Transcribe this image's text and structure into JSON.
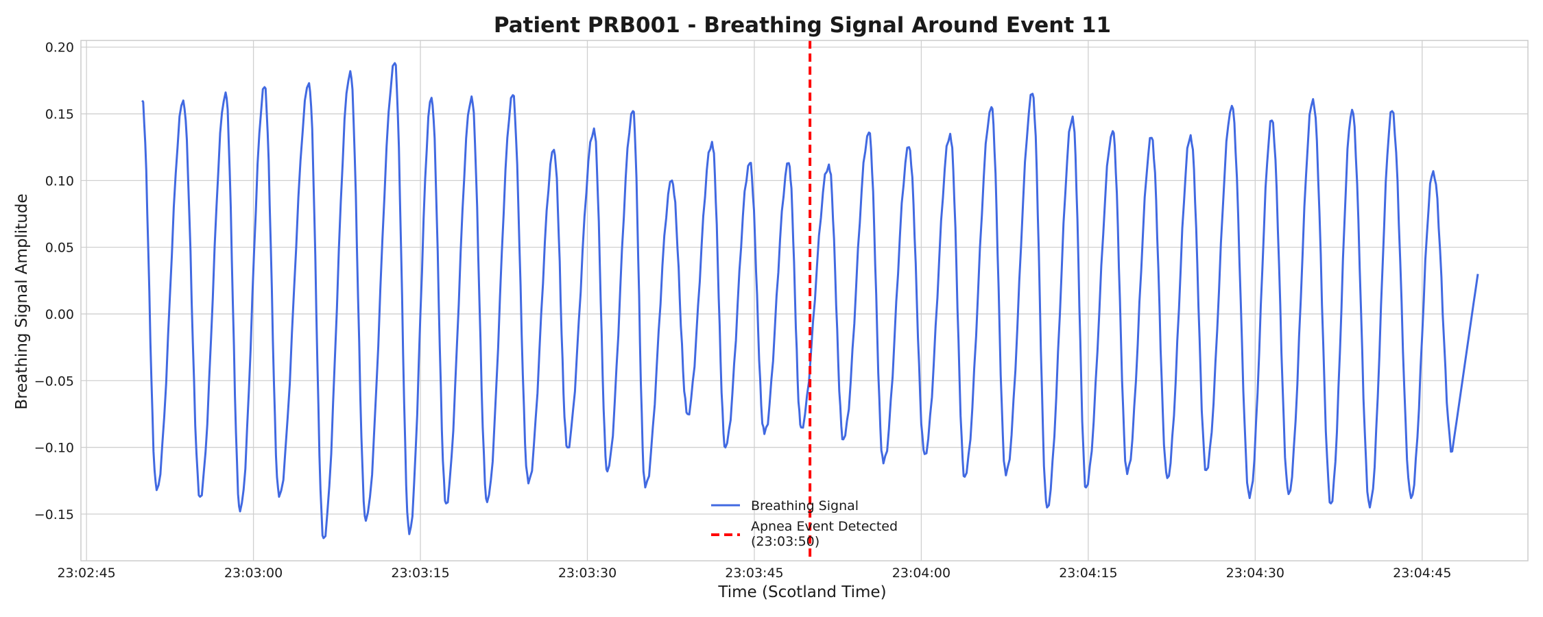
{
  "chart_data": {
    "type": "line",
    "title": "Patient PRB001 - Breathing Signal Around Event 11",
    "xlabel": "Time (Scotland Time)",
    "ylabel": "Breathing Signal Amplitude",
    "x_ticks": [
      "23:02:45",
      "23:03:00",
      "23:03:15",
      "23:03:30",
      "23:03:45",
      "23:04:00",
      "23:04:15",
      "23:04:30",
      "23:04:45"
    ],
    "y_ticks": [
      "−0.15",
      "−0.10",
      "−0.05",
      "0.00",
      "0.05",
      "0.10",
      "0.15",
      "0.20"
    ],
    "xlim": [
      "23:02:44.5",
      "23:04:54.5"
    ],
    "ylim": [
      -0.185,
      0.205
    ],
    "grid": true,
    "legend_position": "lower-center",
    "colors": {
      "signal": "#4169e1",
      "event": "#ff0000"
    },
    "series": [
      {
        "name": "Breathing Signal",
        "style": "solid",
        "peaks": [
          {
            "t": "23:02:50.0",
            "v": 0.16
          },
          {
            "t": "23:02:53.7",
            "v": 0.16
          },
          {
            "t": "23:02:57.5",
            "v": 0.166
          },
          {
            "t": "23:03:01.0",
            "v": 0.17
          },
          {
            "t": "23:03:05.0",
            "v": 0.173
          },
          {
            "t": "23:03:08.7",
            "v": 0.182
          },
          {
            "t": "23:03:12.7",
            "v": 0.188
          },
          {
            "t": "23:03:16.0",
            "v": 0.162
          },
          {
            "t": "23:03:19.6",
            "v": 0.163
          },
          {
            "t": "23:03:23.3",
            "v": 0.164
          },
          {
            "t": "23:03:27.0",
            "v": 0.123
          },
          {
            "t": "23:03:30.6",
            "v": 0.139
          },
          {
            "t": "23:03:34.1",
            "v": 0.152
          },
          {
            "t": "23:03:37.6",
            "v": 0.1
          },
          {
            "t": "23:03:41.2",
            "v": 0.129
          },
          {
            "t": "23:03:44.6",
            "v": 0.113
          },
          {
            "t": "23:03:48.1",
            "v": 0.113
          },
          {
            "t": "23:03:51.7",
            "v": 0.112
          },
          {
            "t": "23:03:55.3",
            "v": 0.136
          },
          {
            "t": "23:03:58.9",
            "v": 0.125
          },
          {
            "t": "23:04:02.6",
            "v": 0.135
          },
          {
            "t": "23:04:06.3",
            "v": 0.155
          },
          {
            "t": "23:04:10.0",
            "v": 0.165
          },
          {
            "t": "23:04:13.6",
            "v": 0.148
          },
          {
            "t": "23:04:17.2",
            "v": 0.137
          },
          {
            "t": "23:04:20.7",
            "v": 0.132
          },
          {
            "t": "23:04:24.2",
            "v": 0.134
          },
          {
            "t": "23:04:27.9",
            "v": 0.156
          },
          {
            "t": "23:04:31.5",
            "v": 0.145
          },
          {
            "t": "23:04:35.2",
            "v": 0.161
          },
          {
            "t": "23:04:38.7",
            "v": 0.153
          },
          {
            "t": "23:04:42.3",
            "v": 0.152
          },
          {
            "t": "23:04:46.0",
            "v": 0.107
          }
        ],
        "troughs": [
          {
            "t": "23:02:51.3",
            "v": -0.132
          },
          {
            "t": "23:02:55.2",
            "v": -0.137
          },
          {
            "t": "23:02:58.8",
            "v": -0.148
          },
          {
            "t": "23:03:02.3",
            "v": -0.137
          },
          {
            "t": "23:03:06.3",
            "v": -0.168
          },
          {
            "t": "23:03:10.1",
            "v": -0.155
          },
          {
            "t": "23:03:14.0",
            "v": -0.165
          },
          {
            "t": "23:03:17.3",
            "v": -0.142
          },
          {
            "t": "23:03:21.0",
            "v": -0.141
          },
          {
            "t": "23:03:24.7",
            "v": -0.127
          },
          {
            "t": "23:03:28.2",
            "v": -0.1
          },
          {
            "t": "23:03:31.8",
            "v": -0.118
          },
          {
            "t": "23:03:35.2",
            "v": -0.13
          },
          {
            "t": "23:03:39.0",
            "v": -0.075
          },
          {
            "t": "23:03:42.4",
            "v": -0.1
          },
          {
            "t": "23:03:45.9",
            "v": -0.09
          },
          {
            "t": "23:03:49.2",
            "v": -0.085
          },
          {
            "t": "23:03:53.0",
            "v": -0.094
          },
          {
            "t": "23:03:56.6",
            "v": -0.112
          },
          {
            "t": "23:04:00.3",
            "v": -0.105
          },
          {
            "t": "23:04:03.9",
            "v": -0.122
          },
          {
            "t": "23:04:07.6",
            "v": -0.121
          },
          {
            "t": "23:04:11.3",
            "v": -0.145
          },
          {
            "t": "23:04:14.8",
            "v": -0.13
          },
          {
            "t": "23:04:18.5",
            "v": -0.12
          },
          {
            "t": "23:04:22.1",
            "v": -0.123
          },
          {
            "t": "23:04:25.6",
            "v": -0.117
          },
          {
            "t": "23:04:29.5",
            "v": -0.138
          },
          {
            "t": "23:04:33.0",
            "v": -0.135
          },
          {
            "t": "23:04:36.8",
            "v": -0.142
          },
          {
            "t": "23:04:40.3",
            "v": -0.145
          },
          {
            "t": "23:04:44.0",
            "v": -0.138
          },
          {
            "t": "23:04:47.7",
            "v": -0.103
          }
        ],
        "start": {
          "t": "23:02:50.0",
          "v": 0.16
        },
        "end": {
          "t": "23:04:50.0",
          "v": 0.03
        }
      },
      {
        "name": "Apnea Event Detected\n(23:03:50)",
        "style": "dashed-vertical",
        "x": "23:03:50"
      }
    ],
    "legend": [
      {
        "label": "Breathing Signal",
        "color": "#4169e1",
        "style": "solid"
      },
      {
        "label_lines": [
          "Apnea Event Detected",
          "(23:03:50)"
        ],
        "color": "#ff0000",
        "style": "dashed"
      }
    ]
  }
}
